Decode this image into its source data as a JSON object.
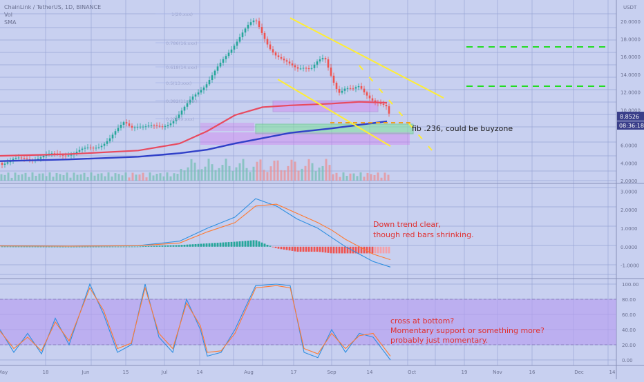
{
  "header": {
    "symbol_line": "ChainLink / TetherUS, 1D, BINANCE",
    "indicator_vol": "Vol",
    "indicator_sma": "SMA",
    "currency": "USDT"
  },
  "price_axis": {
    "ticks": [
      "20.0000",
      "18.0000",
      "16.0000",
      "14.0000",
      "12.0000",
      "10.0000",
      "8.0000",
      "6.0000",
      "4.0000",
      "2.0000"
    ],
    "last_price": "8.8526",
    "countdown": "08:36:18"
  },
  "macd_axis": {
    "ticks": [
      "3.0000",
      "2.0000",
      "1.0000",
      "0.0000",
      "-1.0000"
    ]
  },
  "stoch_axis": {
    "ticks": [
      "100.00",
      "80.00",
      "60.00",
      "40.00",
      "20.00",
      "0.00"
    ]
  },
  "time_axis": {
    "labels": [
      "May",
      "18",
      "Jun",
      "15",
      "Jul",
      "14",
      "Aug",
      "17",
      "Sep",
      "14",
      "Oct",
      "19",
      "Nov",
      "16",
      "Dec",
      "14"
    ]
  },
  "fib_labels": [
    "1(20.xxx)",
    "0.786(16.xxx)",
    "0.618(14.xxx)",
    "0.5(13.xxx)",
    "0.382(11.xxx)",
    "0.236(9.xxx)"
  ],
  "annotations": {
    "fib_note": "fib .236, could be buyzone",
    "macd_note": [
      "Down trend clear,",
      "though red bars shrinking."
    ],
    "stoch_note": [
      "cross at bottom?",
      "Momentary support or something more?",
      "probably just momentary."
    ]
  },
  "colors": {
    "background": "#c8d0f0",
    "grid": "#9aa6d6",
    "candle_up": "#26a69a",
    "candle_down": "#ef5350",
    "ma_red": "#e84a5f",
    "ma_blue": "#3040c8",
    "trend_yellow": "#ffee33",
    "target_green": "#22dd22",
    "annotation_red": "#e03030"
  },
  "chart_data": [
    {
      "type": "candlestick",
      "panel": "price",
      "title": "ChainLink / TetherUS, 1D, BINANCE",
      "ylabel": "USDT",
      "ylim": [
        2,
        21
      ],
      "x_start_date": "2020-05-01",
      "close_series": [
        [
          0,
          4.0
        ],
        [
          10,
          4.1
        ],
        [
          20,
          4.3
        ],
        [
          30,
          4.4
        ],
        [
          40,
          4.5
        ],
        [
          50,
          4.6
        ],
        [
          60,
          4.7
        ],
        [
          70,
          4.8
        ],
        [
          80,
          4.9
        ],
        [
          90,
          5.0
        ],
        [
          100,
          5.1
        ],
        [
          110,
          5.2
        ],
        [
          120,
          5.4
        ],
        [
          130,
          5.6
        ],
        [
          140,
          5.9
        ],
        [
          150,
          6.3
        ],
        [
          160,
          6.8
        ],
        [
          170,
          7.6
        ],
        [
          180,
          8.6
        ],
        [
          190,
          8.2
        ],
        [
          200,
          8.3
        ],
        [
          210,
          8.0
        ],
        [
          220,
          8.0
        ],
        [
          230,
          8.1
        ],
        [
          240,
          8.4
        ],
        [
          250,
          8.8
        ],
        [
          260,
          9.4
        ],
        [
          270,
          10.4
        ],
        [
          280,
          11.6
        ],
        [
          290,
          12.4
        ],
        [
          300,
          13.1
        ],
        [
          310,
          14.1
        ],
        [
          320,
          15.2
        ],
        [
          330,
          16.4
        ],
        [
          340,
          17.6
        ],
        [
          350,
          18.7
        ],
        [
          360,
          19.5
        ],
        [
          370,
          20.0
        ],
        [
          380,
          18.6
        ],
        [
          390,
          17.2
        ],
        [
          400,
          16.1
        ],
        [
          410,
          15.4
        ],
        [
          420,
          15.0
        ],
        [
          430,
          14.8
        ],
        [
          440,
          15.0
        ],
        [
          450,
          14.6
        ],
        [
          460,
          15.3
        ],
        [
          470,
          15.8
        ],
        [
          480,
          13.8
        ],
        [
          490,
          12.1
        ],
        [
          500,
          12.4
        ],
        [
          510,
          12.1
        ],
        [
          520,
          12.6
        ],
        [
          530,
          11.9
        ],
        [
          540,
          11.2
        ],
        [
          550,
          10.6
        ],
        [
          560,
          10.1
        ],
        [
          565,
          8.85
        ]
      ],
      "ma_red": [
        [
          0,
          4.8
        ],
        [
          100,
          5.0
        ],
        [
          200,
          5.4
        ],
        [
          260,
          6.2
        ],
        [
          300,
          7.6
        ],
        [
          340,
          9.4
        ],
        [
          380,
          10.3
        ],
        [
          420,
          10.5
        ],
        [
          480,
          10.7
        ],
        [
          520,
          10.9
        ],
        [
          560,
          10.8
        ]
      ],
      "ma_blue": [
        [
          0,
          4.2
        ],
        [
          100,
          4.4
        ],
        [
          200,
          4.7
        ],
        [
          260,
          5.1
        ],
        [
          300,
          5.5
        ],
        [
          340,
          6.2
        ],
        [
          380,
          6.8
        ],
        [
          420,
          7.4
        ],
        [
          480,
          7.9
        ],
        [
          520,
          8.3
        ],
        [
          560,
          8.7
        ]
      ],
      "target_levels": [
        16.9,
        12.2
      ],
      "fib_236_level": 8.2
    },
    {
      "type": "bar",
      "panel": "macd",
      "ylim": [
        -1.5,
        3.2
      ],
      "macd_line": [
        [
          0,
          0.05
        ],
        [
          100,
          0.03
        ],
        [
          200,
          0.06
        ],
        [
          260,
          0.3
        ],
        [
          300,
          1.0
        ],
        [
          340,
          1.6
        ],
        [
          370,
          2.6
        ],
        [
          400,
          2.2
        ],
        [
          430,
          1.5
        ],
        [
          460,
          1.0
        ],
        [
          480,
          0.5
        ],
        [
          500,
          0.0
        ],
        [
          520,
          -0.4
        ],
        [
          540,
          -0.8
        ],
        [
          565,
          -1.1
        ]
      ],
      "signal_line": [
        [
          0,
          0.04
        ],
        [
          100,
          0.03
        ],
        [
          200,
          0.05
        ],
        [
          260,
          0.2
        ],
        [
          300,
          0.8
        ],
        [
          340,
          1.3
        ],
        [
          370,
          2.2
        ],
        [
          400,
          2.3
        ],
        [
          430,
          1.8
        ],
        [
          460,
          1.3
        ],
        [
          480,
          0.9
        ],
        [
          500,
          0.4
        ],
        [
          520,
          0.0
        ],
        [
          540,
          -0.4
        ],
        [
          565,
          -0.7
        ]
      ]
    },
    {
      "type": "line",
      "panel": "stoch_rsi",
      "ylim": [
        0,
        100
      ],
      "bands": [
        20,
        80
      ],
      "k_line": [
        [
          0,
          40
        ],
        [
          20,
          10
        ],
        [
          40,
          35
        ],
        [
          60,
          8
        ],
        [
          80,
          55
        ],
        [
          100,
          20
        ],
        [
          130,
          100
        ],
        [
          150,
          60
        ],
        [
          170,
          10
        ],
        [
          190,
          20
        ],
        [
          210,
          100
        ],
        [
          230,
          30
        ],
        [
          250,
          10
        ],
        [
          270,
          80
        ],
        [
          290,
          40
        ],
        [
          300,
          5
        ],
        [
          320,
          10
        ],
        [
          340,
          40
        ],
        [
          370,
          98
        ],
        [
          400,
          100
        ],
        [
          420,
          98
        ],
        [
          440,
          10
        ],
        [
          460,
          3
        ],
        [
          480,
          40
        ],
        [
          500,
          10
        ],
        [
          520,
          35
        ],
        [
          540,
          30
        ],
        [
          565,
          0
        ]
      ],
      "d_line": [
        [
          0,
          38
        ],
        [
          20,
          15
        ],
        [
          40,
          30
        ],
        [
          60,
          12
        ],
        [
          80,
          50
        ],
        [
          100,
          25
        ],
        [
          130,
          95
        ],
        [
          150,
          65
        ],
        [
          170,
          15
        ],
        [
          190,
          22
        ],
        [
          210,
          95
        ],
        [
          230,
          35
        ],
        [
          250,
          15
        ],
        [
          270,
          75
        ],
        [
          290,
          45
        ],
        [
          300,
          10
        ],
        [
          320,
          12
        ],
        [
          340,
          35
        ],
        [
          370,
          95
        ],
        [
          400,
          98
        ],
        [
          420,
          95
        ],
        [
          440,
          15
        ],
        [
          460,
          8
        ],
        [
          480,
          35
        ],
        [
          500,
          15
        ],
        [
          520,
          32
        ],
        [
          540,
          35
        ],
        [
          565,
          5
        ]
      ]
    }
  ]
}
